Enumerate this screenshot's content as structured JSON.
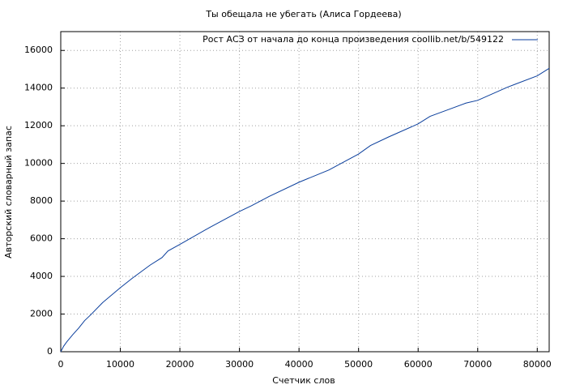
{
  "chart_data": {
    "type": "line",
    "title": "Ты обещала не убегать (Алиса Гордеева)",
    "x_label": "Счетчик слов",
    "y_label": "Авторский словарный запас",
    "x": [
      0,
      500,
      1000,
      2000,
      3000,
      4000,
      5000,
      7000,
      10000,
      12000,
      15000,
      17000,
      18000,
      20000,
      25000,
      30000,
      32000,
      35000,
      40000,
      45000,
      50000,
      52000,
      55000,
      60000,
      62000,
      65000,
      68000,
      70000,
      75000,
      80000,
      82000
    ],
    "series": [
      {
        "name": "Рост АСЗ от начала до конца произведения coollib.net/b/549122",
        "color": "#0a3e9c",
        "values": [
          0,
          300,
          520,
          900,
          1250,
          1650,
          1950,
          2600,
          3400,
          3900,
          4600,
          5000,
          5350,
          5700,
          6600,
          7450,
          7750,
          8250,
          9000,
          9650,
          10500,
          10950,
          11400,
          12100,
          12500,
          12850,
          13200,
          13350,
          14050,
          14650,
          15050
        ]
      }
    ],
    "xlim": [
      0,
      82000
    ],
    "ylim": [
      0,
      17000
    ],
    "xticks": [
      0,
      10000,
      20000,
      30000,
      40000,
      50000,
      60000,
      70000,
      80000
    ],
    "yticks": [
      0,
      2000,
      4000,
      6000,
      8000,
      10000,
      12000,
      14000,
      16000
    ],
    "grid": true,
    "legend": "top-right"
  }
}
